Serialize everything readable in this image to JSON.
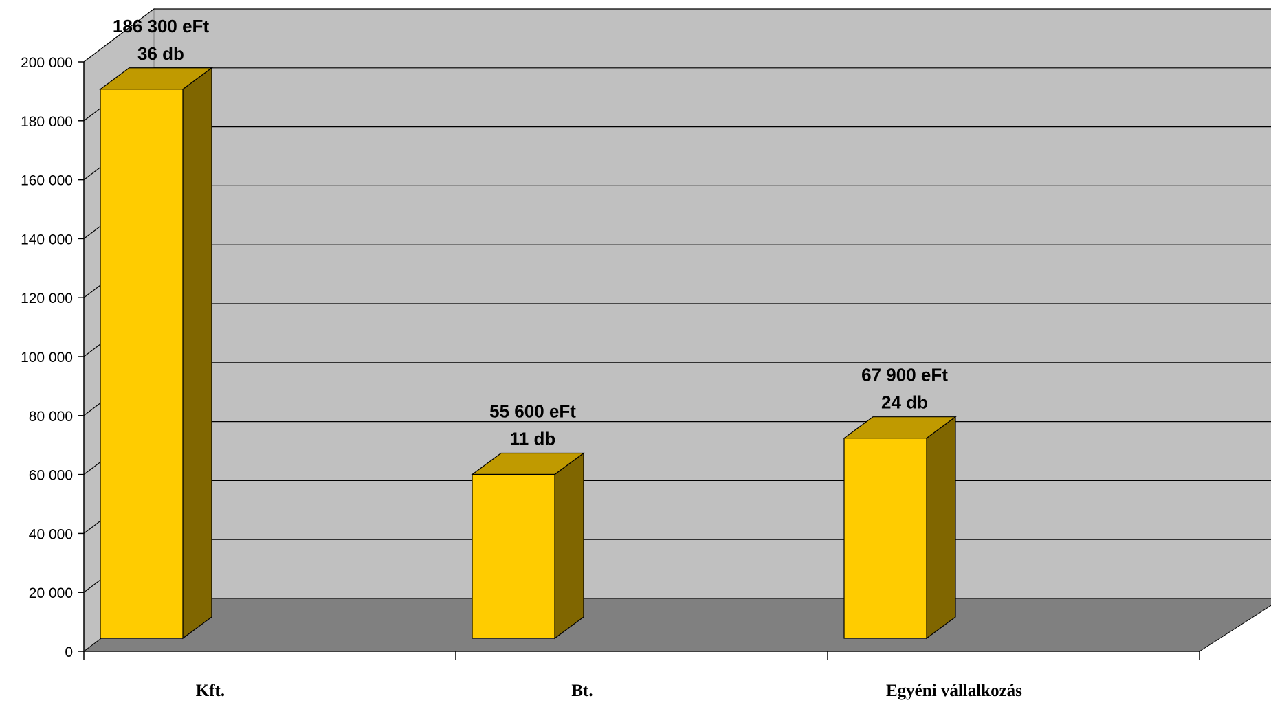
{
  "chart_data": {
    "type": "bar",
    "style": "3d-column",
    "categories": [
      "Kft.",
      "Bt.",
      "Egyéni vállalkozás"
    ],
    "values": [
      186300,
      55600,
      67900
    ],
    "counts": [
      36,
      11,
      24
    ],
    "data_labels": [
      [
        "186 300 eFt",
        "36 db"
      ],
      [
        "55 600 eFt",
        "11 db"
      ],
      [
        "67 900 eFt",
        "24 db"
      ]
    ],
    "y_ticks": [
      {
        "value": 0,
        "label": "0"
      },
      {
        "value": 20000,
        "label": "20 000"
      },
      {
        "value": 40000,
        "label": "40 000"
      },
      {
        "value": 60000,
        "label": "60 000"
      },
      {
        "value": 80000,
        "label": "80 000"
      },
      {
        "value": 100000,
        "label": "100 000"
      },
      {
        "value": 120000,
        "label": "120 000"
      },
      {
        "value": 140000,
        "label": "140 000"
      },
      {
        "value": 160000,
        "label": "160 000"
      },
      {
        "value": 180000,
        "label": "180 000"
      },
      {
        "value": 200000,
        "label": "200 000"
      }
    ],
    "ylim": [
      0,
      200000
    ],
    "title": "",
    "xlabel": "",
    "ylabel": "",
    "grid": true,
    "legend": "none",
    "colors": {
      "bar_front": "#FFCC00",
      "bar_top": "#C09A00",
      "bar_side": "#806600",
      "back_wall": "#C0C0C0",
      "side_wall": "#C0C0C0",
      "floor": "#808080",
      "gridline": "#000000"
    }
  }
}
